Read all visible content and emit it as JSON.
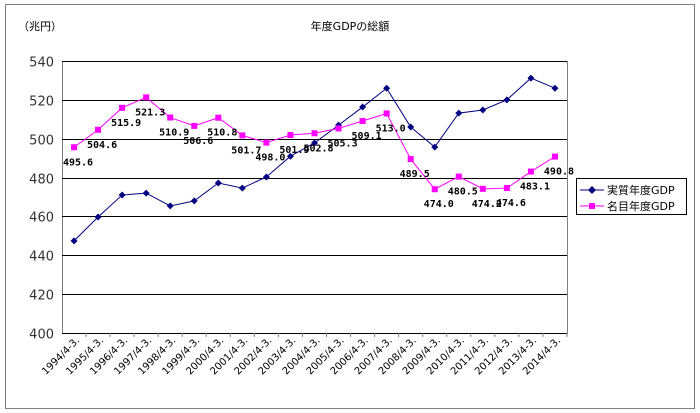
{
  "chart_data": {
    "type": "line",
    "title": "年度GDPの総額",
    "ylabel": "（兆円）",
    "xlabel": "",
    "ylim": [
      400,
      540
    ],
    "yticks": [
      400,
      420,
      440,
      460,
      480,
      500,
      520,
      540
    ],
    "grid": true,
    "legend_position": "right",
    "categories": [
      "1994/4-3.",
      "1995/4-3.",
      "1996/4-3.",
      "1997/4-3.",
      "1998/4-3.",
      "1999/4-3.",
      "2000/4-3.",
      "2001/4-3.",
      "2002/4-3.",
      "2003/4-3.",
      "2004/4-3.",
      "2005/4-3.",
      "2006/4-3.",
      "2007/4-3.",
      "2008/4-3.",
      "2009/4-3.",
      "2010/4-3.",
      "2011/4-3.",
      "2012/4-3.",
      "2013/4-3.",
      "2014/4-3."
    ],
    "series": [
      {
        "name": "実質年度GDP",
        "color": "#000080",
        "marker": "diamond",
        "values": [
          447.4,
          459.7,
          471.0,
          472.0,
          465.4,
          468.0,
          477.2,
          474.6,
          480.3,
          491.0,
          497.8,
          507.0,
          516.3,
          526.0,
          506.0,
          495.7,
          513.2,
          514.8,
          520.0,
          531.2,
          526.0
        ],
        "labels": []
      },
      {
        "name": "名目年度GDP",
        "color": "#ff00ff",
        "marker": "square",
        "values": [
          495.6,
          504.6,
          515.9,
          521.3,
          510.9,
          506.6,
          510.8,
          501.7,
          498.0,
          501.9,
          502.8,
          505.3,
          509.1,
          513.0,
          489.5,
          474.0,
          480.5,
          474.2,
          474.6,
          483.1,
          490.8
        ],
        "labels": [
          "495.6",
          "504.6",
          "515.9",
          "521.3",
          "510.9",
          "506.6",
          "510.8",
          "501.7",
          "498.0",
          "501.9",
          "502.8",
          "505.3",
          "509.1",
          "513.0",
          "489.5",
          "474.0",
          "480.5",
          "474.2",
          "474.6",
          "483.1",
          "490.8"
        ]
      }
    ]
  }
}
